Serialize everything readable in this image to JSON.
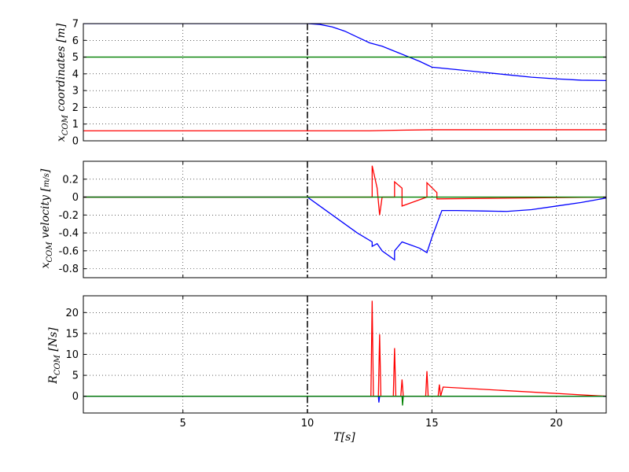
{
  "chart_data": [
    {
      "type": "line",
      "ylabel": "x_COM coordinates [m]",
      "xlim": [
        1,
        22
      ],
      "ylim": [
        0,
        7
      ],
      "yticks": [
        0,
        1,
        2,
        3,
        4,
        5,
        6,
        7
      ],
      "grid": true,
      "event_line_x": 10,
      "series": [
        {
          "color": "#0000ff",
          "x": [
            1,
            10,
            10.5,
            11,
            11.5,
            12,
            12.5,
            13,
            13.5,
            14,
            14.5,
            15,
            16,
            17,
            18,
            19,
            20,
            21,
            22
          ],
          "y": [
            7.0,
            7.0,
            6.95,
            6.8,
            6.55,
            6.2,
            5.85,
            5.65,
            5.35,
            5.05,
            4.75,
            4.4,
            4.25,
            4.1,
            3.95,
            3.8,
            3.7,
            3.62,
            3.6
          ]
        },
        {
          "color": "#008000",
          "x": [
            1,
            22
          ],
          "y": [
            5.0,
            5.0
          ]
        },
        {
          "color": "#ff0000",
          "x": [
            1,
            12.5,
            13.5,
            15,
            22
          ],
          "y": [
            0.6,
            0.6,
            0.63,
            0.66,
            0.66
          ]
        }
      ]
    },
    {
      "type": "line",
      "ylabel": "x_COM velocity [m/s]",
      "xlim": [
        1,
        22
      ],
      "ylim": [
        -0.9,
        0.4
      ],
      "yticks": [
        -0.8,
        -0.6,
        -0.4,
        -0.2,
        0.0,
        0.2
      ],
      "grid": true,
      "event_line_x": 10,
      "series": [
        {
          "color": "#0000ff",
          "x": [
            1,
            10,
            10.5,
            11,
            11.5,
            12,
            12.6,
            12.6,
            12.8,
            13.0,
            13.5,
            13.5,
            13.8,
            14.0,
            14.5,
            14.8,
            15.0,
            15.4,
            16,
            17,
            18,
            19,
            20,
            21,
            22
          ],
          "y": [
            0,
            0,
            -0.1,
            -0.2,
            -0.3,
            -0.4,
            -0.5,
            -0.55,
            -0.52,
            -0.6,
            -0.7,
            -0.6,
            -0.5,
            -0.52,
            -0.57,
            -0.62,
            -0.45,
            -0.15,
            -0.15,
            -0.155,
            -0.16,
            -0.14,
            -0.1,
            -0.06,
            -0.01
          ]
        },
        {
          "color": "#ff0000",
          "x": [
            1,
            12.6,
            12.6,
            12.8,
            12.9,
            13.0,
            13.5,
            13.5,
            13.8,
            13.8,
            14.8,
            14.8,
            15.2,
            15.2,
            22
          ],
          "y": [
            0,
            0,
            0.35,
            0.1,
            -0.2,
            0,
            0,
            0.17,
            0.1,
            -0.1,
            0,
            0.16,
            0.05,
            -0.02,
            0
          ]
        },
        {
          "color": "#008000",
          "x": [
            1,
            22
          ],
          "y": [
            0,
            0
          ]
        }
      ]
    },
    {
      "type": "line",
      "ylabel": "R_COM [Ns]",
      "xlabel": "T[s]",
      "xlim": [
        1,
        22
      ],
      "ylim": [
        -4,
        24
      ],
      "yticks": [
        0,
        5,
        10,
        15,
        20
      ],
      "xticks": [
        5,
        10,
        15,
        20
      ],
      "grid": true,
      "event_line_x": 10,
      "series": [
        {
          "color": "#ff0000",
          "x": [
            1,
            12.55,
            12.6,
            12.65,
            12.85,
            12.9,
            12.95,
            13.45,
            13.5,
            13.55,
            13.75,
            13.8,
            13.85,
            14.75,
            14.8,
            14.85,
            15.25,
            15.3,
            15.35,
            15.45,
            22
          ],
          "y": [
            0,
            0,
            22.8,
            0,
            0,
            14.8,
            0,
            0,
            11.5,
            0,
            0,
            4.0,
            0,
            0,
            6.0,
            0,
            0,
            2.8,
            0,
            2.2,
            0
          ]
        },
        {
          "color": "#0000ff",
          "x": [
            1,
            12.85,
            12.87,
            12.9,
            22
          ],
          "y": [
            0,
            0,
            -1.5,
            0,
            0
          ]
        },
        {
          "color": "#008000",
          "x": [
            1,
            13.8,
            13.82,
            13.85,
            22
          ],
          "y": [
            0,
            0,
            -2.2,
            0,
            0
          ]
        }
      ]
    }
  ]
}
